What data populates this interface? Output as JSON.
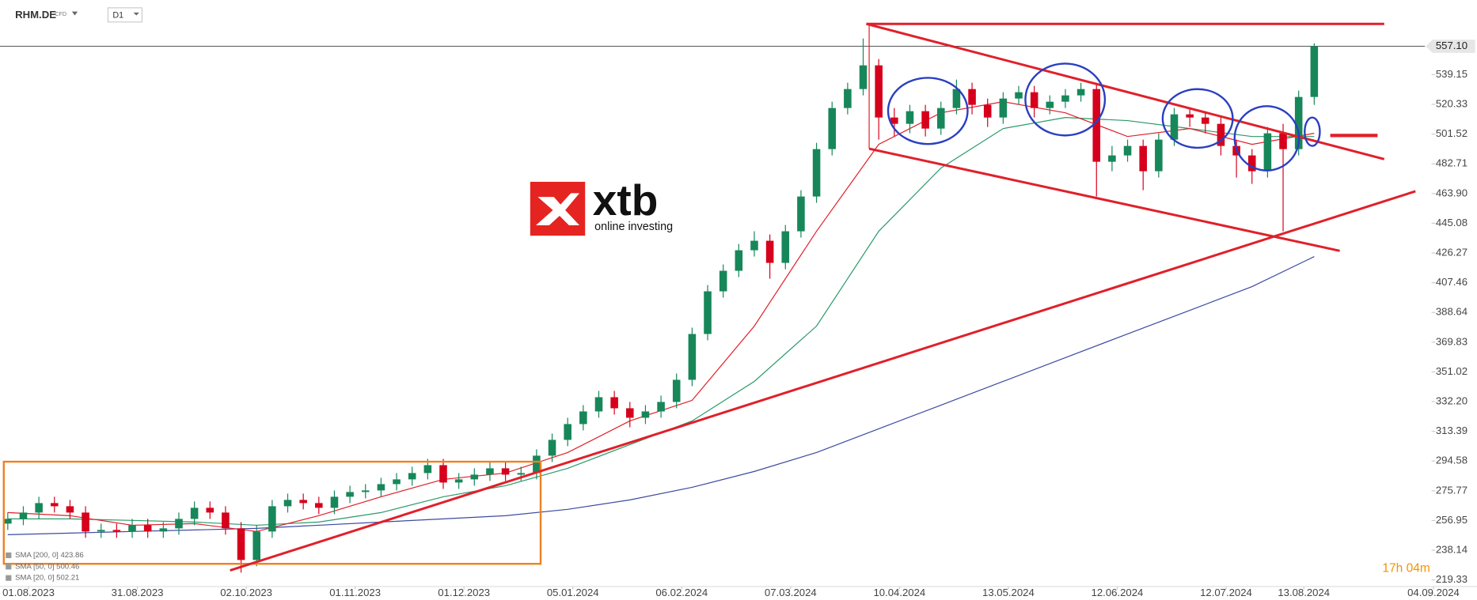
{
  "header": {
    "symbol": "RHM.DE",
    "badge": "CFD",
    "timeframe": "D1"
  },
  "logo": {
    "name": "xtb",
    "tagline": "online investing"
  },
  "timer": "17h 04m",
  "chart_data": {
    "type": "candlestick",
    "xlim": [
      -0.5,
      284.4
    ],
    "ylim": [
      215.2,
      586.2
    ],
    "xticks": [
      {
        "value": 5,
        "label": "01.08.2023"
      },
      {
        "value": 26,
        "label": "31.08.2023"
      },
      {
        "value": 47,
        "label": "02.10.2023"
      },
      {
        "value": 68,
        "label": "01.11.2023"
      },
      {
        "value": 89,
        "label": "01.12.2023"
      },
      {
        "value": 110,
        "label": "05.01.2024"
      },
      {
        "value": 131,
        "label": "06.02.2024"
      },
      {
        "value": 152,
        "label": "07.03.2024"
      },
      {
        "value": 173,
        "label": "10.04.2024"
      },
      {
        "value": 194,
        "label": "13.05.2024"
      },
      {
        "value": 215,
        "label": "12.06.2024"
      },
      {
        "value": 236,
        "label": "12.07.2024"
      },
      {
        "value": 251,
        "label": "13.08.2024"
      },
      {
        "value": 276,
        "label": "04.09.2024"
      }
    ],
    "yticks": [
      539.15,
      520.33,
      501.52,
      482.71,
      {
        "value": 463.9,
        "label": "463.90"
      },
      445.08,
      426.27,
      407.46,
      388.64,
      369.83,
      351.02,
      {
        "value": 332.2,
        "label": "332.20"
      },
      313.39,
      294.58,
      275.77,
      256.95,
      238.14,
      219.33
    ],
    "last_price": {
      "value": 557.1,
      "label": "557.10"
    },
    "up_color": "#17875a",
    "down_color": "#d6001c",
    "x": [
      1,
      4,
      7,
      10,
      13,
      16,
      19,
      22,
      25,
      28,
      31,
      34,
      37,
      40,
      43,
      46,
      49,
      52,
      55,
      58,
      61,
      64,
      67,
      70,
      73,
      76,
      79,
      82,
      85,
      88,
      91,
      94,
      97,
      100,
      103,
      106,
      109,
      112,
      115,
      118,
      121,
      124,
      127,
      130,
      133,
      136,
      139,
      142,
      145,
      148,
      151,
      154,
      157,
      160,
      163,
      166,
      169,
      172,
      175,
      178,
      181,
      184,
      187,
      190,
      193,
      196,
      199,
      202,
      205,
      208,
      211,
      214,
      217,
      220,
      223,
      226,
      229,
      232,
      235,
      238,
      241,
      244,
      247,
      250,
      253
    ],
    "open": [
      255,
      258,
      262,
      268,
      266,
      262,
      250,
      251,
      250,
      254,
      250,
      252,
      258,
      265,
      262,
      252,
      232,
      250,
      266,
      270,
      268,
      265,
      272,
      275,
      276,
      280,
      283,
      287,
      292,
      281,
      283,
      286,
      290,
      286,
      287,
      298,
      308,
      318,
      326,
      335,
      328,
      322,
      326,
      332,
      346,
      375,
      402,
      415,
      428,
      434,
      420,
      440,
      462,
      492,
      518,
      530,
      545,
      512,
      508,
      516,
      505,
      518,
      530,
      520,
      512,
      524,
      528,
      518,
      522,
      526,
      530,
      484,
      488,
      494,
      478,
      498,
      514,
      512,
      508,
      494,
      488,
      478,
      502,
      492,
      525
    ],
    "high": [
      262,
      266,
      272,
      272,
      270,
      266,
      255,
      255,
      258,
      258,
      256,
      262,
      269,
      269,
      266,
      256,
      254,
      270,
      274,
      274,
      272,
      276,
      279,
      280,
      284,
      287,
      291,
      296,
      296,
      287,
      290,
      294,
      294,
      291,
      302,
      312,
      322,
      330,
      339,
      339,
      332,
      330,
      336,
      350,
      379,
      406,
      419,
      432,
      440,
      438,
      444,
      466,
      496,
      522,
      534,
      562,
      549,
      518,
      520,
      520,
      522,
      536,
      534,
      524,
      528,
      532,
      532,
      526,
      530,
      534,
      534,
      494,
      498,
      498,
      502,
      518,
      518,
      516,
      512,
      498,
      492,
      506,
      508,
      529,
      559
    ],
    "low": [
      251,
      254,
      258,
      262,
      258,
      246,
      246,
      246,
      246,
      246,
      246,
      248,
      254,
      258,
      248,
      224,
      228,
      246,
      262,
      264,
      261,
      261,
      268,
      271,
      272,
      276,
      279,
      283,
      277,
      277,
      279,
      282,
      282,
      282,
      283,
      294,
      304,
      314,
      322,
      324,
      316,
      318,
      322,
      328,
      342,
      371,
      398,
      411,
      424,
      410,
      416,
      436,
      458,
      488,
      514,
      526,
      498,
      500,
      502,
      500,
      501,
      514,
      514,
      506,
      508,
      520,
      512,
      514,
      518,
      522,
      462,
      478,
      484,
      466,
      474,
      494,
      506,
      502,
      488,
      474,
      470,
      474,
      440,
      488,
      520
    ],
    "close": [
      258,
      262,
      268,
      266,
      262,
      250,
      251,
      250,
      254,
      250,
      252,
      258,
      265,
      262,
      252,
      232,
      250,
      266,
      270,
      268,
      265,
      272,
      275,
      276,
      280,
      283,
      287,
      292,
      281,
      283,
      286,
      290,
      286,
      287,
      298,
      308,
      318,
      326,
      335,
      328,
      322,
      326,
      332,
      346,
      375,
      402,
      415,
      428,
      434,
      420,
      440,
      462,
      492,
      518,
      530,
      545,
      512,
      508,
      516,
      505,
      518,
      530,
      520,
      512,
      524,
      528,
      518,
      522,
      526,
      530,
      484,
      488,
      494,
      478,
      498,
      514,
      512,
      508,
      494,
      488,
      478,
      502,
      492,
      525,
      557.1
    ],
    "sma_x": [
      1,
      13,
      25,
      37,
      49,
      61,
      73,
      85,
      97,
      109,
      121,
      133,
      145,
      157,
      169,
      181,
      193,
      205,
      217,
      229,
      241,
      253
    ],
    "sma": [
      {
        "name": "SMA [200, 0] 423.86",
        "color": "#3c4aa0",
        "values": [
          248,
          249,
          250,
          251,
          252,
          254,
          256,
          258,
          260,
          264,
          270,
          278,
          288,
          300,
          315,
          330,
          345,
          360,
          375,
          390,
          405,
          424
        ]
      },
      {
        "name": "SMA [50, 0] 500.46",
        "color": "#2a9a6a",
        "values": [
          258,
          258,
          257,
          256,
          254,
          256,
          262,
          272,
          279,
          290,
          305,
          320,
          345,
          380,
          440,
          480,
          505,
          512,
          510,
          505,
          500,
          500
        ]
      },
      {
        "name": "SMA [20, 0] 502.21",
        "color": "#e0202a",
        "values": [
          262,
          260,
          254,
          255,
          250,
          260,
          272,
          283,
          287,
          300,
          320,
          333,
          380,
          440,
          495,
          515,
          522,
          515,
          500,
          505,
          495,
          502
        ]
      }
    ]
  }
}
